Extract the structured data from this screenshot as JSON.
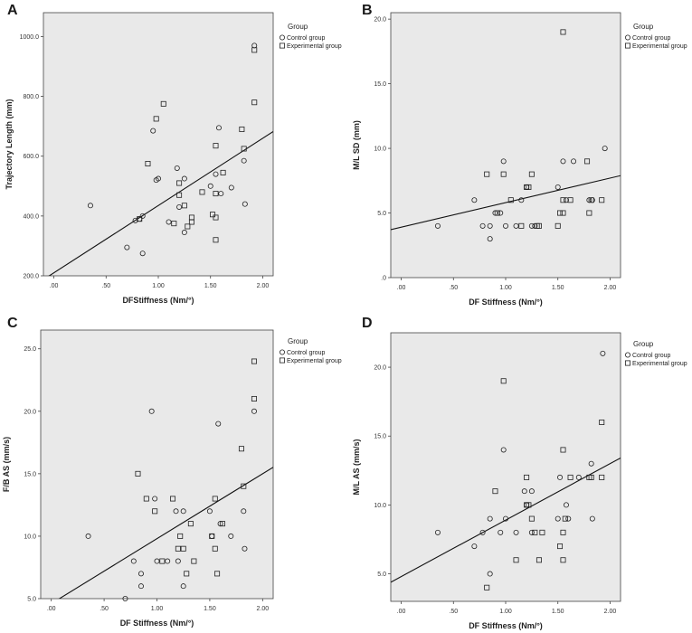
{
  "chart_data": [
    {
      "panel": "A",
      "type": "scatter",
      "xlabel": "DFStiffness (Nm/°)",
      "ylabel": "Trajectory Length (mm)",
      "xlim": [
        -0.1,
        2.1
      ],
      "ylim": [
        200,
        1080
      ],
      "xticks": [
        ".00",
        ".50",
        "1.00",
        "1.50",
        "2.00"
      ],
      "yticks": [
        "200.0",
        "400.0",
        "600.0",
        "800.0",
        "1000.0"
      ],
      "legend": {
        "title": "Group",
        "entries": [
          "Control group",
          "Experimental group"
        ]
      },
      "series": [
        {
          "name": "Control group",
          "marker": "circle",
          "points": [
            [
              0.35,
              435
            ],
            [
              0.7,
              295
            ],
            [
              0.78,
              385
            ],
            [
              0.82,
              390
            ],
            [
              0.85,
              400
            ],
            [
              0.85,
              275
            ],
            [
              0.95,
              685
            ],
            [
              0.98,
              520
            ],
            [
              1.0,
              525
            ],
            [
              1.1,
              380
            ],
            [
              1.18,
              560
            ],
            [
              1.2,
              430
            ],
            [
              1.25,
              525
            ],
            [
              1.25,
              345
            ],
            [
              1.5,
              500
            ],
            [
              1.55,
              540
            ],
            [
              1.58,
              695
            ],
            [
              1.6,
              475
            ],
            [
              1.7,
              495
            ],
            [
              1.82,
              585
            ],
            [
              1.83,
              440
            ],
            [
              1.92,
              970
            ]
          ]
        },
        {
          "name": "Experimental group",
          "marker": "square",
          "points": [
            [
              0.82,
              390
            ],
            [
              0.9,
              575
            ],
            [
              0.98,
              725
            ],
            [
              1.05,
              775
            ],
            [
              1.15,
              375
            ],
            [
              1.2,
              470
            ],
            [
              1.2,
              510
            ],
            [
              1.25,
              435
            ],
            [
              1.28,
              365
            ],
            [
              1.32,
              395
            ],
            [
              1.32,
              380
            ],
            [
              1.42,
              480
            ],
            [
              1.52,
              405
            ],
            [
              1.55,
              395
            ],
            [
              1.55,
              320
            ],
            [
              1.55,
              635
            ],
            [
              1.55,
              475
            ],
            [
              1.62,
              545
            ],
            [
              1.8,
              690
            ],
            [
              1.82,
              625
            ],
            [
              1.92,
              780
            ],
            [
              1.92,
              955
            ]
          ]
        }
      ],
      "fit_line": {
        "intercept": 210,
        "slope": 225
      }
    },
    {
      "panel": "B",
      "type": "scatter",
      "xlabel": "DF Stiffness (Nm/°)",
      "ylabel": "M/L SD (mm)",
      "xlim": [
        -0.1,
        2.1
      ],
      "ylim": [
        0,
        20.5
      ],
      "xticks": [
        ".00",
        ".50",
        "1.00",
        "1.50",
        "2.00"
      ],
      "yticks": [
        ".0",
        "5.0",
        "10.0",
        "15.0",
        "20.0"
      ],
      "legend": {
        "title": "Group",
        "entries": [
          "Control group",
          "Experimental group"
        ]
      },
      "series": [
        {
          "name": "Control group",
          "marker": "circle",
          "points": [
            [
              0.35,
              4
            ],
            [
              0.7,
              6
            ],
            [
              0.78,
              4
            ],
            [
              0.85,
              4
            ],
            [
              0.85,
              3
            ],
            [
              0.9,
              5
            ],
            [
              0.95,
              5
            ],
            [
              0.98,
              9
            ],
            [
              1.0,
              4
            ],
            [
              1.1,
              4
            ],
            [
              1.15,
              6
            ],
            [
              1.2,
              7
            ],
            [
              1.25,
              4
            ],
            [
              1.28,
              4
            ],
            [
              1.5,
              7
            ],
            [
              1.55,
              9
            ],
            [
              1.58,
              6
            ],
            [
              1.65,
              9
            ],
            [
              1.8,
              6
            ],
            [
              1.83,
              6
            ],
            [
              1.95,
              10
            ]
          ]
        },
        {
          "name": "Experimental group",
          "marker": "square",
          "points": [
            [
              0.82,
              8
            ],
            [
              0.92,
              5
            ],
            [
              0.98,
              8
            ],
            [
              1.05,
              6
            ],
            [
              1.15,
              4
            ],
            [
              1.2,
              7
            ],
            [
              1.22,
              7
            ],
            [
              1.25,
              8
            ],
            [
              1.3,
              4
            ],
            [
              1.32,
              4
            ],
            [
              1.5,
              4
            ],
            [
              1.52,
              5
            ],
            [
              1.55,
              5
            ],
            [
              1.55,
              19
            ],
            [
              1.55,
              6
            ],
            [
              1.62,
              6
            ],
            [
              1.78,
              9
            ],
            [
              1.8,
              5
            ],
            [
              1.82,
              6
            ],
            [
              1.92,
              6
            ]
          ]
        }
      ],
      "fit_line": {
        "intercept": 3.9,
        "slope": 1.9
      }
    },
    {
      "panel": "C",
      "type": "scatter",
      "xlabel": "DF Stiffness (Nm/°)",
      "ylabel": "F/B AS (mm/s)",
      "xlim": [
        -0.1,
        2.1
      ],
      "ylim": [
        5,
        26.5
      ],
      "xticks": [
        ".00",
        ".50",
        "1.00",
        "1.50",
        "2.00"
      ],
      "yticks": [
        "5.0",
        "10.0",
        "15.0",
        "20.0",
        "25.0"
      ],
      "legend": {
        "title": "Group",
        "entries": [
          "Control group",
          "Experimental group"
        ]
      },
      "series": [
        {
          "name": "Control group",
          "marker": "circle",
          "points": [
            [
              0.35,
              10
            ],
            [
              0.7,
              5
            ],
            [
              0.78,
              8
            ],
            [
              0.85,
              7
            ],
            [
              0.85,
              6
            ],
            [
              0.95,
              20
            ],
            [
              0.98,
              13
            ],
            [
              1.0,
              8
            ],
            [
              1.1,
              8
            ],
            [
              1.18,
              12
            ],
            [
              1.2,
              8
            ],
            [
              1.25,
              12
            ],
            [
              1.25,
              6
            ],
            [
              1.5,
              12
            ],
            [
              1.52,
              10
            ],
            [
              1.58,
              19
            ],
            [
              1.6,
              11
            ],
            [
              1.7,
              10
            ],
            [
              1.82,
              12
            ],
            [
              1.83,
              9
            ],
            [
              1.92,
              20
            ]
          ]
        },
        {
          "name": "Experimental group",
          "marker": "square",
          "points": [
            [
              0.82,
              15
            ],
            [
              0.9,
              13
            ],
            [
              0.98,
              12
            ],
            [
              1.05,
              8
            ],
            [
              1.15,
              13
            ],
            [
              1.2,
              9
            ],
            [
              1.22,
              10
            ],
            [
              1.25,
              9
            ],
            [
              1.28,
              7
            ],
            [
              1.32,
              11
            ],
            [
              1.35,
              8
            ],
            [
              1.52,
              10
            ],
            [
              1.55,
              9
            ],
            [
              1.55,
              13
            ],
            [
              1.57,
              7
            ],
            [
              1.62,
              11
            ],
            [
              1.8,
              17
            ],
            [
              1.82,
              14
            ],
            [
              1.92,
              21
            ],
            [
              1.92,
              24
            ]
          ]
        }
      ],
      "fit_line": {
        "intercept": 4.6,
        "slope": 5.2
      }
    },
    {
      "panel": "D",
      "type": "scatter",
      "xlabel": "DF Stiffness (Nm/°)",
      "ylabel": "M/L AS (mm/s)",
      "xlim": [
        -0.1,
        2.1
      ],
      "ylim": [
        3,
        22.5
      ],
      "xticks": [
        ".00",
        ".50",
        "1.00",
        "1.50",
        "2.00"
      ],
      "yticks": [
        "5.0",
        "10.0",
        "15.0",
        "20.0"
      ],
      "legend": {
        "title": "Group",
        "entries": [
          "Control group",
          "Experimental group"
        ]
      },
      "series": [
        {
          "name": "Control group",
          "marker": "circle",
          "points": [
            [
              0.35,
              8
            ],
            [
              0.7,
              7
            ],
            [
              0.78,
              8
            ],
            [
              0.85,
              5
            ],
            [
              0.85,
              9
            ],
            [
              0.95,
              8
            ],
            [
              0.98,
              14
            ],
            [
              1.0,
              9
            ],
            [
              1.1,
              8
            ],
            [
              1.18,
              11
            ],
            [
              1.2,
              10
            ],
            [
              1.25,
              11
            ],
            [
              1.25,
              8
            ],
            [
              1.5,
              9
            ],
            [
              1.52,
              12
            ],
            [
              1.58,
              10
            ],
            [
              1.6,
              9
            ],
            [
              1.7,
              12
            ],
            [
              1.82,
              13
            ],
            [
              1.83,
              9
            ],
            [
              1.93,
              21
            ]
          ]
        },
        {
          "name": "Experimental group",
          "marker": "square",
          "points": [
            [
              0.82,
              4
            ],
            [
              0.9,
              11
            ],
            [
              0.98,
              19
            ],
            [
              1.1,
              6
            ],
            [
              1.2,
              12
            ],
            [
              1.2,
              10
            ],
            [
              1.22,
              10
            ],
            [
              1.25,
              9
            ],
            [
              1.28,
              8
            ],
            [
              1.32,
              6
            ],
            [
              1.35,
              8
            ],
            [
              1.52,
              7
            ],
            [
              1.55,
              8
            ],
            [
              1.55,
              14
            ],
            [
              1.55,
              6
            ],
            [
              1.57,
              9
            ],
            [
              1.62,
              12
            ],
            [
              1.8,
              12
            ],
            [
              1.82,
              12
            ],
            [
              1.92,
              12
            ],
            [
              1.92,
              16
            ]
          ]
        }
      ],
      "fit_line": {
        "intercept": 4.8,
        "slope": 4.1
      }
    }
  ]
}
